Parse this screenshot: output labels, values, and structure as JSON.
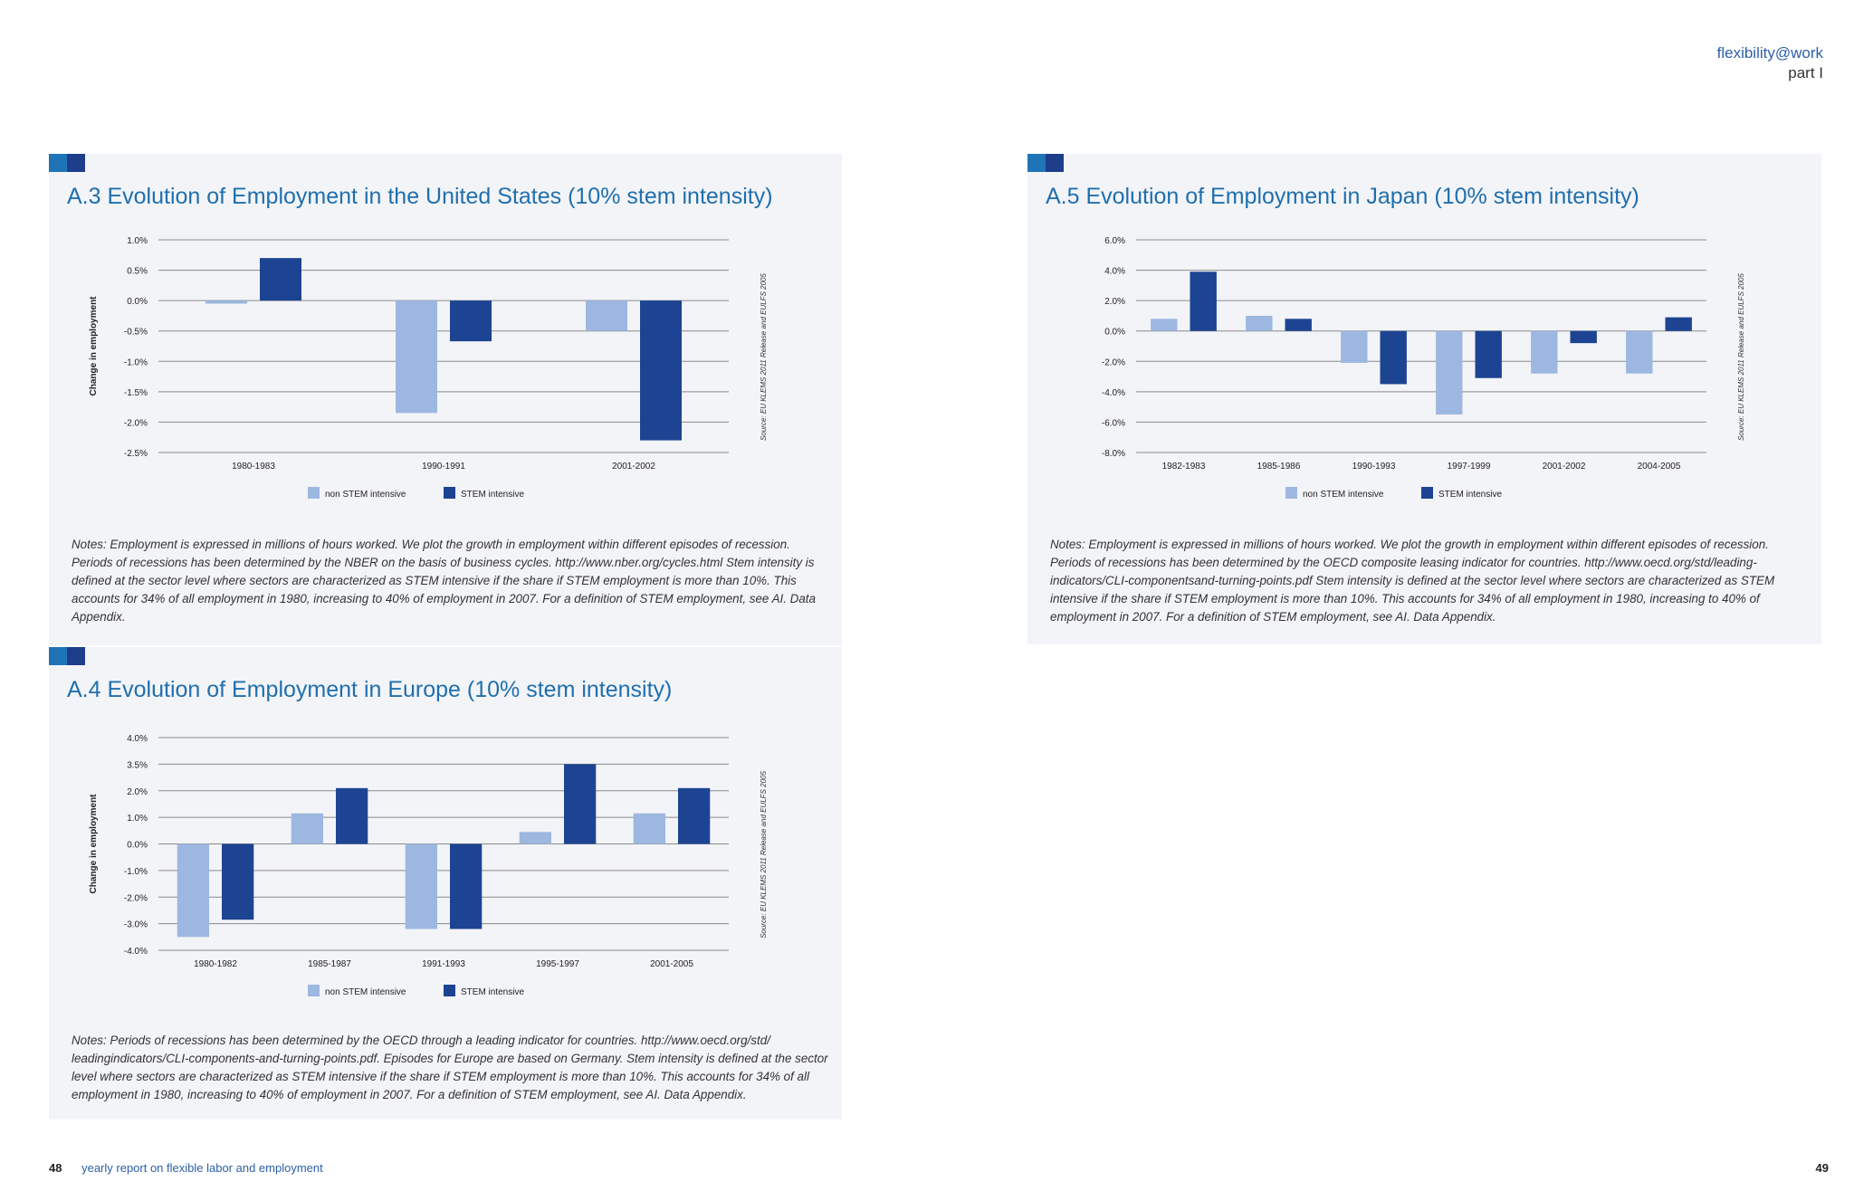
{
  "header": {
    "brand": "flexibility@work",
    "part": "part I"
  },
  "footer": {
    "left_page": "48",
    "left_text": "yearly report on flexible labor and employment",
    "right_page": "49"
  },
  "legend": {
    "non_stem": "non STEM intensive",
    "stem": "STEM intensive"
  },
  "colors": {
    "non_stem": "#9db8e0",
    "stem": "#1d4492",
    "title": "#1f6fae",
    "panel": "#f3f4f8"
  },
  "charts": {
    "us": {
      "title": "A.3 Evolution of Employment in the United States (10% stem intensity)",
      "ylabel": "Change in employment",
      "source": "Source: EU KLEMS 2011 Release and EULFS 2005",
      "note": "Notes:  Employment is expressed in millions of hours worked. We plot the growth in employment within different episodes of recession. Periods of recessions has been determined by the NBER on the basis of business cycles. http://www.nber.org/cycles.html Stem intensity is defined at the sector level where sectors are characterized as STEM intensive if the share if STEM employment is more than 10%. This accounts for 34% of all employment in 1980, increasing to 40% of employment in 2007.  For a definition of STEM employment, see AI. Data Appendix."
    },
    "europe": {
      "title": "A.4 Evolution of Employment in Europe (10% stem intensity)",
      "ylabel": "Change in employment",
      "source": "Source: EU KLEMS 2011 Release and EULFS 2005",
      "note": "Notes:  Periods of recessions has been determined by the OECD through a leading indicator for countries. http://www.oecd.org/std/ leadingindicators/CLI-components-and-turning-points.pdf. Episodes for Europe are based on Germany. Stem intensity is defined at the sector level where sectors are characterized as STEM intensive if the share if STEM employment is more than 10%. This accounts for 34% of all employment in 1980, increasing to 40% of employment in 2007.  For a definition of STEM employment, see AI. Data Appendix."
    },
    "japan": {
      "title": "A.5  Evolution of Employment in Japan (10% stem intensity)",
      "ylabel": "",
      "source": "Source: EU KLEMS 2011 Release and EULFS 2005",
      "note": "Notes: Employment is expressed in millions of hours worked. We plot the growth in employment within different episodes of recession. Periods of recessions has been determined by the OECD composite leasing indicator for countries. http://www.oecd.org/std/leading-indicators/CLI-componentsand-turning-points.pdf Stem intensity is defined at the sector level where sectors are characterized as STEM intensive if the share if STEM employment is more than 10%. This accounts for 34% of all employment in 1980, increasing to 40% of employment in 2007.  For a definition of STEM employment, see AI. Data Appendix."
    }
  },
  "chart_data": [
    {
      "id": "us",
      "type": "bar",
      "title": "A.3 Evolution of Employment in the United States (10% stem intensity)",
      "ylabel": "Change in employment",
      "categories": [
        "1980-1983",
        "1990-1991",
        "2001-2002"
      ],
      "yticks": [
        "1.0%",
        "0.5%",
        "0.0%",
        "-0.5%",
        "-1.0%",
        "-1.5%",
        "-2.0%",
        "-2.5%"
      ],
      "ylim": [
        -2.5,
        1.0
      ],
      "series": [
        {
          "name": "non STEM intensive",
          "values": [
            -0.05,
            -1.85,
            -0.5
          ]
        },
        {
          "name": "STEM intensive",
          "values": [
            0.7,
            -0.67,
            -2.3
          ]
        }
      ],
      "legend": "bottom",
      "grid": true
    },
    {
      "id": "europe",
      "type": "bar",
      "title": "A.4 Evolution of Employment in Europe (10% stem intensity)",
      "ylabel": "Change in employment",
      "categories": [
        "1980-1982",
        "1985-1987",
        "1991-1993",
        "1995-1997",
        "2001-2005"
      ],
      "yticks": [
        "4.0%",
        "3.5%",
        "2.0%",
        "1.0%",
        "0.0%",
        "-1.0%",
        "-2.0%",
        "-3.0%",
        "-4.0%"
      ],
      "ylim": [
        -4.0,
        4.0
      ],
      "series": [
        {
          "name": "non STEM intensive",
          "values": [
            -3.5,
            1.15,
            -3.2,
            0.45,
            1.15
          ]
        },
        {
          "name": "STEM intensive",
          "values": [
            -2.85,
            2.1,
            -3.2,
            3.0,
            2.1
          ]
        }
      ],
      "legend": "bottom",
      "grid": true
    },
    {
      "id": "japan",
      "type": "bar",
      "title": "A.5  Evolution of Employment in Japan (10% stem intensity)",
      "ylabel": "",
      "categories": [
        "1982-1983",
        "1985-1986",
        "1990-1993",
        "1997-1999",
        "2001-2002",
        "2004-2005"
      ],
      "yticks": [
        "6.0%",
        "4.0%",
        "2.0%",
        "0.0%",
        "-2.0%",
        "-4.0%",
        "-6.0%",
        "-8.0%"
      ],
      "ylim": [
        -8.0,
        6.0
      ],
      "series": [
        {
          "name": "non STEM intensive",
          "values": [
            0.8,
            1.0,
            -2.1,
            -5.5,
            -2.8,
            -2.8
          ]
        },
        {
          "name": "STEM intensive",
          "values": [
            3.9,
            0.8,
            -3.5,
            -3.1,
            -0.8,
            0.9
          ]
        }
      ],
      "legend": "bottom",
      "grid": true
    }
  ]
}
